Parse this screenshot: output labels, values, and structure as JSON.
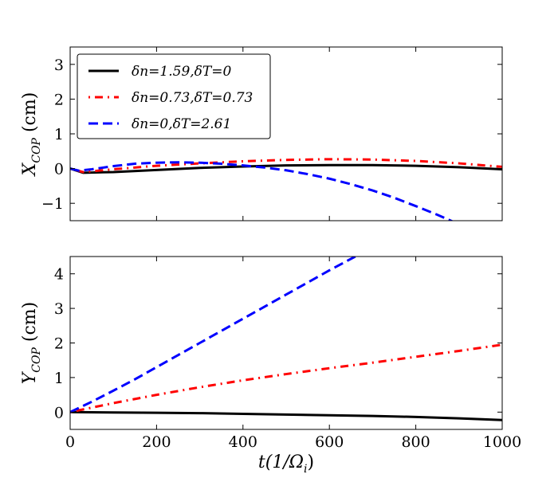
{
  "chart_data": [
    {
      "type": "line",
      "id": "top",
      "ylabel": {
        "main": "X",
        "sub": "COP",
        "unit": " (cm)"
      },
      "xlabel": "",
      "xlim": [
        0,
        1000
      ],
      "ylim": [
        -1.5,
        3.5
      ],
      "xticks": [
        0,
        200,
        400,
        600,
        800,
        1000
      ],
      "show_xtick_labels": false,
      "yticks": [
        -1,
        0,
        1,
        2,
        3
      ],
      "ytick_labels": [
        "−1",
        "0",
        "1",
        "2",
        "3"
      ],
      "legend": {
        "position": "top-left"
      },
      "series": [
        {
          "name": "δn=1.59,δT=0",
          "color": "#000000",
          "style": "solid",
          "x": [
            0,
            30,
            100,
            200,
            300,
            400,
            500,
            600,
            700,
            800,
            900,
            1000
          ],
          "y": [
            0,
            -0.12,
            -0.1,
            -0.04,
            0.02,
            0.06,
            0.09,
            0.1,
            0.1,
            0.08,
            0.04,
            -0.02
          ]
        },
        {
          "name": "δn=0.73,δT=0.73",
          "color": "#ff0000",
          "style": "dashdot",
          "x": [
            0,
            30,
            100,
            200,
            300,
            400,
            500,
            600,
            700,
            800,
            900,
            1000
          ],
          "y": [
            0,
            -0.1,
            -0.02,
            0.08,
            0.15,
            0.21,
            0.25,
            0.27,
            0.26,
            0.22,
            0.15,
            0.05
          ]
        },
        {
          "name": "δn=0,δT=2.61",
          "color": "#0000ff",
          "style": "dashed",
          "x": [
            0,
            20,
            50,
            100,
            150,
            200,
            250,
            300,
            350,
            400,
            450,
            500,
            550,
            600,
            650,
            700,
            750,
            800,
            850,
            890
          ],
          "y": [
            0,
            -0.06,
            -0.02,
            0.07,
            0.14,
            0.17,
            0.18,
            0.17,
            0.14,
            0.09,
            0.03,
            -0.05,
            -0.16,
            -0.29,
            -0.45,
            -0.63,
            -0.84,
            -1.08,
            -1.33,
            -1.55
          ]
        }
      ]
    },
    {
      "type": "line",
      "id": "bottom",
      "ylabel": {
        "main": "Y",
        "sub": "COP",
        "unit": " (cm)"
      },
      "xlabel": {
        "main": "t(1/Ω",
        "sub": "i",
        "end": ")"
      },
      "xlim": [
        0,
        1000
      ],
      "ylim": [
        -0.5,
        4.5
      ],
      "xticks": [
        0,
        200,
        400,
        600,
        800,
        1000
      ],
      "xtick_labels": [
        "0",
        "200",
        "400",
        "600",
        "800",
        "1000"
      ],
      "show_xtick_labels": true,
      "yticks": [
        0,
        1,
        2,
        3,
        4
      ],
      "ytick_labels": [
        "0",
        "1",
        "2",
        "3",
        "4"
      ],
      "series": [
        {
          "name": "δn=1.59,δT=0",
          "color": "#000000",
          "style": "solid",
          "x": [
            0,
            100,
            200,
            300,
            400,
            500,
            600,
            700,
            800,
            900,
            1000
          ],
          "y": [
            0,
            -0.01,
            -0.02,
            -0.03,
            -0.05,
            -0.07,
            -0.09,
            -0.11,
            -0.14,
            -0.18,
            -0.23
          ]
        },
        {
          "name": "δn=0.73,δT=0.73",
          "color": "#ff0000",
          "style": "dashdot",
          "x": [
            0,
            100,
            200,
            300,
            400,
            500,
            600,
            700,
            800,
            900,
            1000
          ],
          "y": [
            0,
            0.26,
            0.5,
            0.72,
            0.92,
            1.1,
            1.27,
            1.43,
            1.6,
            1.77,
            1.95
          ]
        },
        {
          "name": "δn=0,δT=2.61",
          "color": "#0000ff",
          "style": "dashed",
          "x": [
            0,
            50,
            100,
            150,
            200,
            250,
            300,
            350,
            400,
            450,
            500,
            550,
            600,
            660
          ],
          "y": [
            0,
            0.3,
            0.62,
            0.95,
            1.3,
            1.65,
            2.0,
            2.35,
            2.7,
            3.05,
            3.4,
            3.75,
            4.1,
            4.5
          ]
        }
      ]
    }
  ]
}
